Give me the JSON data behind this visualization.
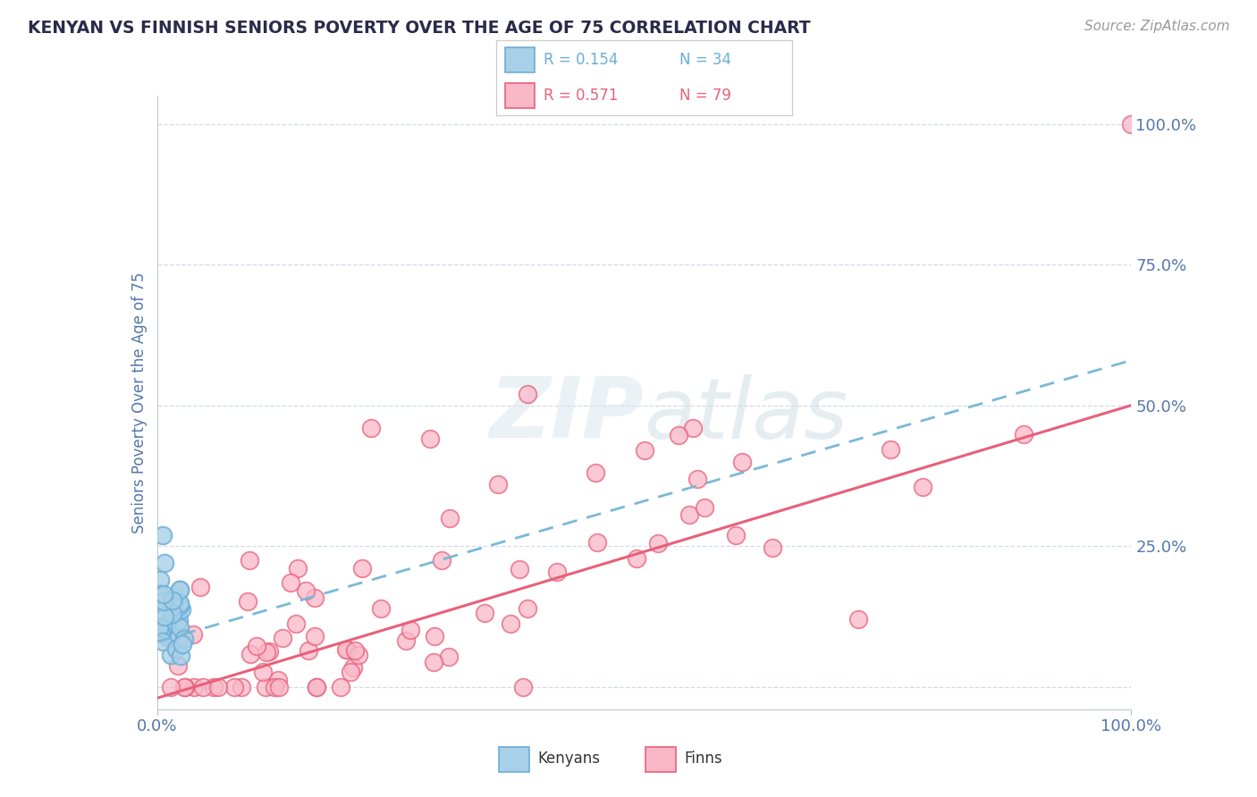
{
  "title": "KENYAN VS FINNISH SENIORS POVERTY OVER THE AGE OF 75 CORRELATION CHART",
  "source": "Source: ZipAtlas.com",
  "ylabel": "Seniors Poverty Over the Age of 75",
  "xlim": [
    0,
    1
  ],
  "ylim": [
    -0.04,
    1.05
  ],
  "color_kenyan_fill": "#a8d0e8",
  "color_kenyan_edge": "#6baed6",
  "color_finn_fill": "#f9b8c8",
  "color_finn_edge": "#e8607a",
  "color_kenyan_line": "#7ab8d8",
  "color_finn_line": "#e8607a",
  "background_color": "#ffffff",
  "grid_color": "#ccd8e8",
  "title_color": "#2a2a4a",
  "axis_label_color": "#5577aa",
  "legend_r1": "R = 0.154",
  "legend_n1": "N = 34",
  "legend_r2": "R = 0.571",
  "legend_n2": "N = 79",
  "finn_intercept": -0.02,
  "finn_slope": 0.52,
  "kenyan_intercept": 0.08,
  "kenyan_slope": 0.5
}
